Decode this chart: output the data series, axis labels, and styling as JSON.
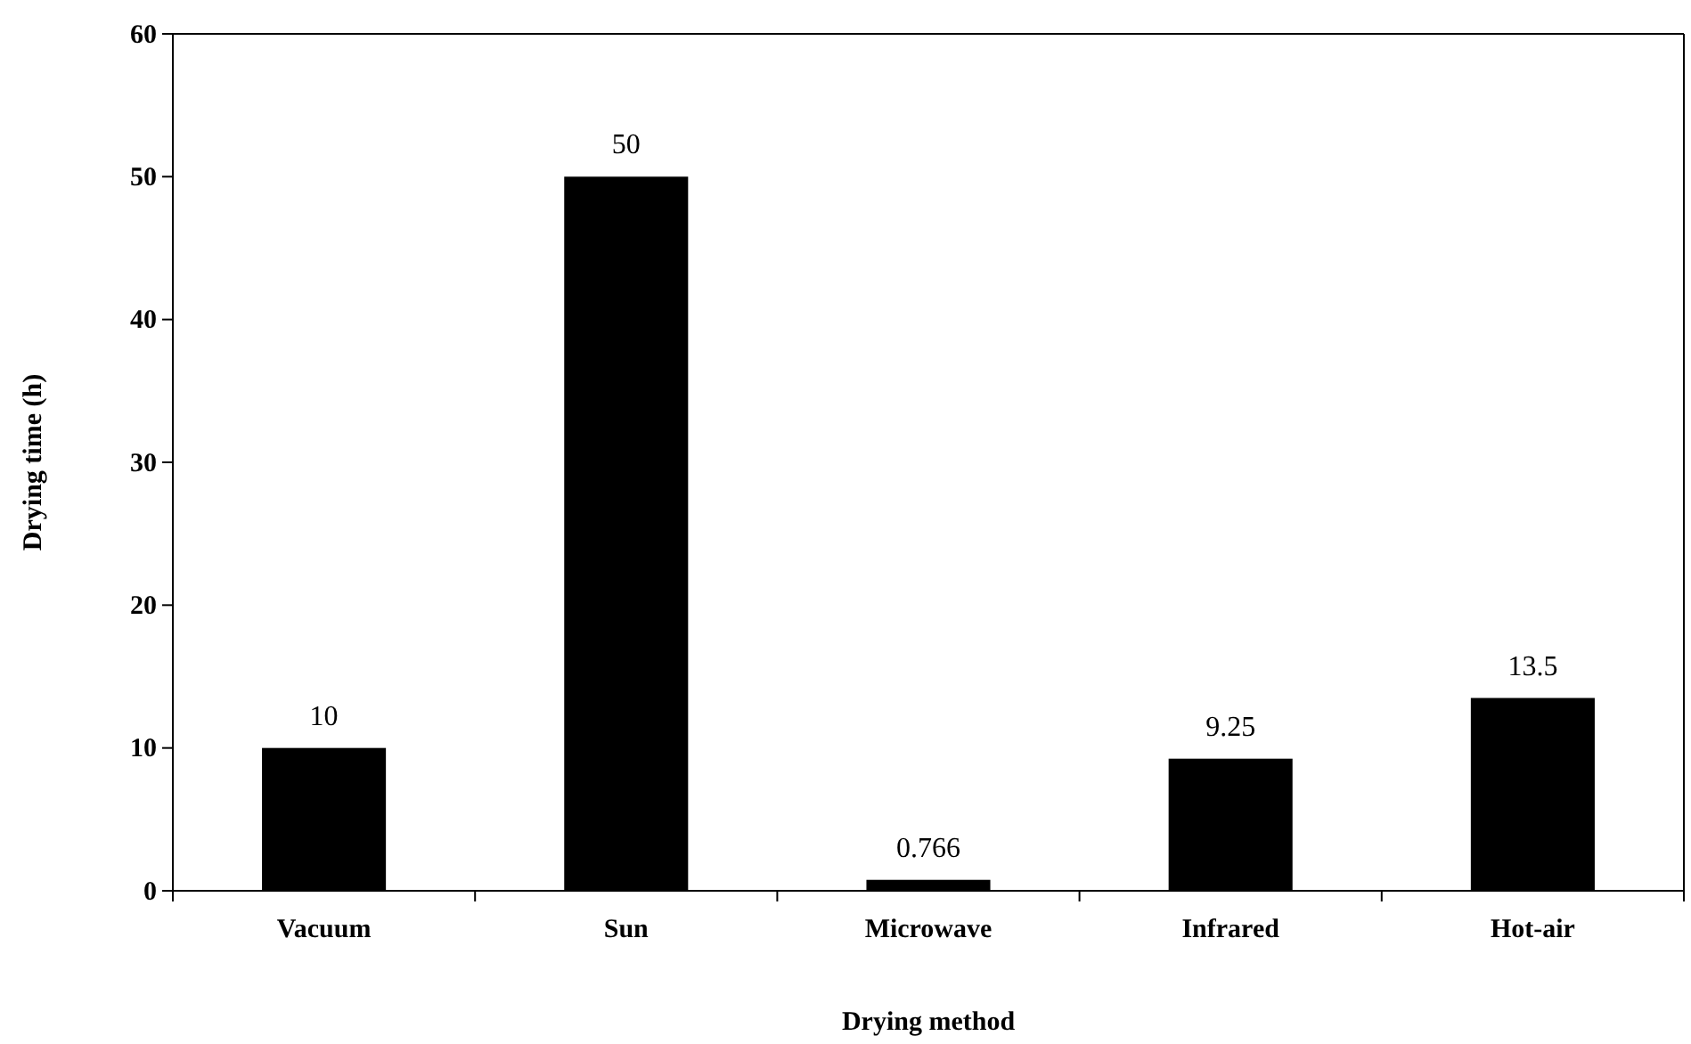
{
  "chart_data": {
    "type": "bar",
    "xlabel": "Drying method",
    "ylabel": "Drying time (h)",
    "categories": [
      "Vacuum",
      "Sun",
      "Microwave",
      "Infrared",
      "Hot-air"
    ],
    "values": [
      10,
      50,
      0.766,
      9.25,
      13.5
    ],
    "color": "#000000",
    "ylim": [
      0,
      60
    ],
    "yticks": [
      0,
      10,
      20,
      30,
      40,
      50,
      60
    ],
    "data_labels": true
  }
}
